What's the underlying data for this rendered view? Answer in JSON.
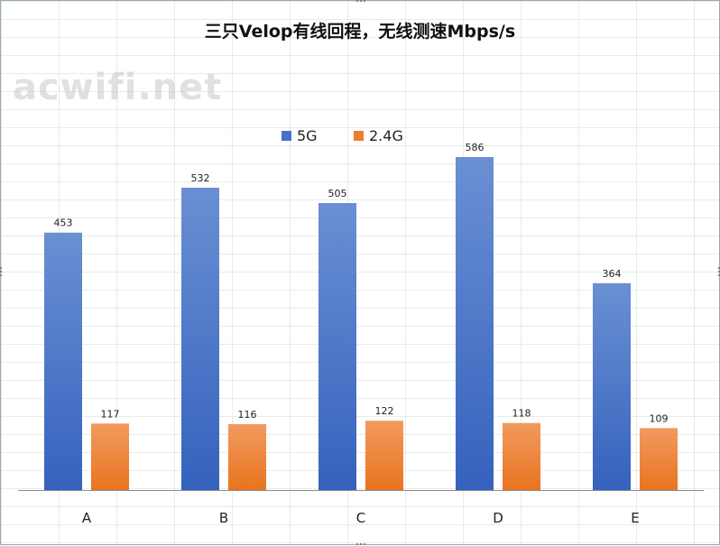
{
  "chart_data": {
    "type": "bar",
    "title": "三只Velop有线回程，无线测速Mbps/s",
    "categories": [
      "A",
      "B",
      "C",
      "D",
      "E"
    ],
    "series": [
      {
        "name": "5G",
        "values": [
          453,
          532,
          505,
          586,
          364
        ],
        "color": "#4472c4"
      },
      {
        "name": "2.4G",
        "values": [
          117,
          116,
          122,
          118,
          109
        ],
        "color": "#ed7d31"
      }
    ],
    "xlabel": "",
    "ylabel": "",
    "ylim": [
      0,
      680
    ],
    "grid": false,
    "legend": "top-center",
    "data_labels": true
  },
  "watermark": "acwifi.net"
}
